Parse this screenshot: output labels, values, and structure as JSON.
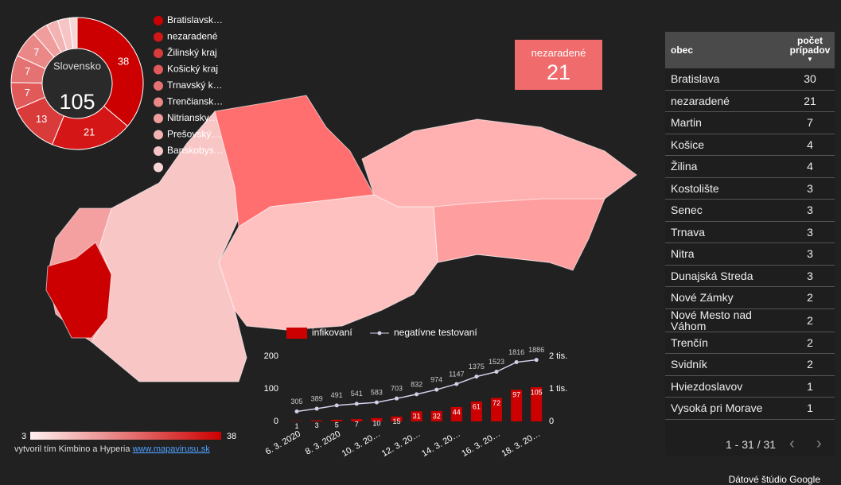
{
  "chart_data": [
    {
      "type": "pie",
      "center_label": "Slovensko",
      "total": 105,
      "categories": [
        "Bratislavsk…",
        "nezaradené",
        "Žilinský kraj",
        "Košický kraj",
        "Trnavský k…",
        "Trenčiansk…",
        "Nitriansky…",
        "Prešovský…",
        "Banskobys…",
        null
      ],
      "values": [
        38,
        21,
        13,
        7,
        7,
        7,
        4,
        3,
        3,
        2
      ],
      "colors": [
        "#cc0000",
        "#d41616",
        "#d93a3a",
        "#e05a5a",
        "#e57272",
        "#ea8888",
        "#ef9d9d",
        "#f3b3b3",
        "#f6c4c4",
        "#f9d6d6"
      ]
    },
    {
      "type": "bar",
      "categories": [
        "6. 3. 2020",
        null,
        "8. 3. 2020",
        null,
        "10. 3. 20…",
        null,
        "12. 3. 20…",
        null,
        "14. 3. 20…",
        null,
        "16. 3. 20…",
        null,
        "18. 3. 20…"
      ],
      "series": [
        {
          "name": "infikovaní",
          "color": "#cc0000",
          "values": [
            1,
            3,
            5,
            7,
            10,
            15,
            31,
            32,
            44,
            61,
            72,
            97,
            105
          ]
        },
        {
          "name": "negatívne testovaní",
          "color": "#d0d0e8",
          "axis": "y2",
          "values": [
            305,
            389,
            491,
            541,
            583,
            703,
            832,
            974,
            1147,
            1375,
            1523,
            1816,
            1886
          ]
        }
      ],
      "ylim": [
        0,
        200
      ],
      "yticks": [
        0,
        100,
        200
      ],
      "y2lim": [
        0,
        2000
      ],
      "y2ticks": [
        0,
        {
          "value": 1000,
          "label": "1 tis."
        },
        {
          "value": 2000,
          "label": "2 tis."
        }
      ]
    }
  ],
  "kpi": {
    "label": "nezaradené",
    "value": 21
  },
  "map_scale": {
    "min": 3,
    "max": 38
  },
  "table": {
    "columns": [
      "obec",
      "počet prípadov"
    ],
    "rows": [
      [
        "Bratislava",
        30
      ],
      [
        "nezaradené",
        21
      ],
      [
        "Martin",
        7
      ],
      [
        "Košice",
        4
      ],
      [
        "Žilina",
        4
      ],
      [
        "Kostolište",
        3
      ],
      [
        "Senec",
        3
      ],
      [
        "Trnava",
        3
      ],
      [
        "Nitra",
        3
      ],
      [
        "Dunajská Streda",
        3
      ],
      [
        "Nové Zámky",
        2
      ],
      [
        "Nové Mesto nad Váhom",
        2
      ],
      [
        "Trenčín",
        2
      ],
      [
        "Svidník",
        2
      ],
      [
        "Hviezdoslavov",
        1
      ],
      [
        "Vysoká pri Morave",
        1
      ]
    ],
    "pagination": "1 - 31 / 31"
  },
  "footer": {
    "credit": "vytvoril tím Kimbino a Hyperia",
    "link": "www.mapavirusu.sk",
    "brand": "Dátové štúdio Google"
  }
}
